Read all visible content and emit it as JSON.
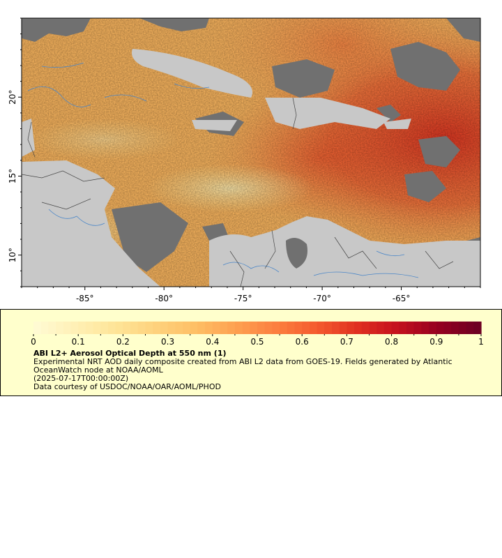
{
  "map": {
    "lon_ticks": [
      -85,
      -80,
      -75,
      -70,
      -65
    ],
    "lon_labels": [
      "-85°",
      "-80°",
      "-75°",
      "-70°",
      "-65°"
    ],
    "lat_ticks": [
      10,
      15,
      20
    ],
    "lat_labels": [
      "10°",
      "15°",
      "20°"
    ],
    "lon_range": [
      -89,
      -60
    ],
    "lat_range": [
      8,
      25
    ],
    "colors": {
      "land": "#c8c8c8",
      "nodata": "#707070",
      "river": "#4a86c8",
      "border": "#555555",
      "frame": "#000000"
    }
  },
  "colorbar": {
    "ticks": [
      "0",
      "0.1",
      "0.2",
      "0.3",
      "0.4",
      "0.5",
      "0.6",
      "0.7",
      "0.8",
      "0.9",
      "1"
    ],
    "range": [
      0,
      1
    ],
    "palette": [
      "#fffad2",
      "#ffefb4",
      "#fee496",
      "#fed17c",
      "#febe64",
      "#fd9f50",
      "#fc7e3f",
      "#f45a2e",
      "#e03020",
      "#c4111e",
      "#960020",
      "#6e0022"
    ]
  },
  "legend": {
    "title": "ABI L2+ Aerosol Optical Depth at 550 nm (1)",
    "description": "Experimental NRT AOD daily composite created from ABI L2 data from GOES-19. Fields generated by Atlantic OceanWatch node at NOAA/AOML",
    "timestamp": "(2025-07-17T00:00:00Z)",
    "credit": "Data courtesy of USDOC/NOAA/OAR/AOML/PHOD"
  }
}
